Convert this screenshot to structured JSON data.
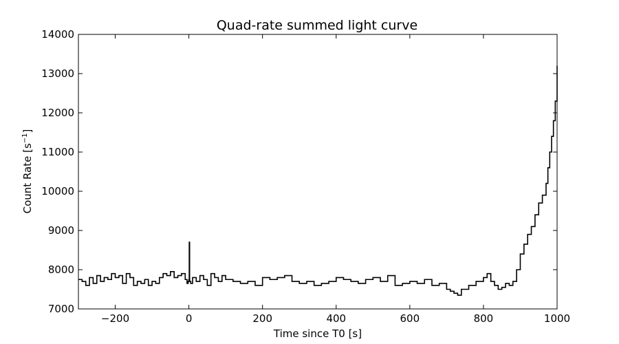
{
  "chart_data": {
    "type": "line",
    "title": "Quad-rate summed light curve",
    "xlabel": "Time since T0 [s]",
    "ylabel_main": "Count Rate [s",
    "ylabel_sup": "−1",
    "ylabel_end": "]",
    "xlim": [
      -300,
      1000
    ],
    "ylim": [
      7000,
      14000
    ],
    "xticks": [
      {
        "value": -200,
        "label": "−200"
      },
      {
        "value": 0,
        "label": "0"
      },
      {
        "value": 200,
        "label": "200"
      },
      {
        "value": 400,
        "label": "400"
      },
      {
        "value": 600,
        "label": "600"
      },
      {
        "value": 800,
        "label": "800"
      },
      {
        "value": 1000,
        "label": "1000"
      }
    ],
    "yticks": [
      {
        "value": 7000,
        "label": "7000"
      },
      {
        "value": 8000,
        "label": "8000"
      },
      {
        "value": 9000,
        "label": "9000"
      },
      {
        "value": 10000,
        "label": "10000"
      },
      {
        "value": 11000,
        "label": "11000"
      },
      {
        "value": 12000,
        "label": "12000"
      },
      {
        "value": 13000,
        "label": "13000"
      },
      {
        "value": 14000,
        "label": "14000"
      }
    ],
    "grid": false,
    "line_color": "#000000",
    "series": [
      {
        "x": [
          -300,
          -290,
          -280,
          -270,
          -260,
          -250,
          -240,
          -230,
          -220,
          -210,
          -200,
          -190,
          -180,
          -170,
          -160,
          -150,
          -140,
          -130,
          -120,
          -110,
          -100,
          -90,
          -80,
          -70,
          -60,
          -50,
          -40,
          -30,
          -20,
          -10,
          -5,
          -2,
          0,
          1,
          2,
          5,
          10,
          20,
          30,
          40,
          50,
          60,
          70,
          80,
          90,
          100,
          120,
          140,
          160,
          180,
          200,
          220,
          240,
          260,
          280,
          300,
          320,
          340,
          360,
          380,
          400,
          420,
          440,
          460,
          480,
          500,
          520,
          540,
          560,
          580,
          600,
          620,
          640,
          660,
          680,
          700,
          710,
          720,
          730,
          740,
          760,
          780,
          800,
          810,
          820,
          830,
          840,
          850,
          860,
          870,
          880,
          890,
          900,
          910,
          920,
          930,
          940,
          950,
          960,
          970,
          975,
          980,
          985,
          990,
          995,
          1000
        ],
        "y": [
          7750,
          7700,
          7600,
          7800,
          7650,
          7850,
          7700,
          7800,
          7750,
          7900,
          7800,
          7850,
          7650,
          7900,
          7800,
          7600,
          7700,
          7650,
          7750,
          7600,
          7700,
          7650,
          7800,
          7900,
          7850,
          7950,
          7800,
          7850,
          7900,
          7750,
          7650,
          7700,
          7750,
          8700,
          7700,
          7650,
          7800,
          7700,
          7850,
          7750,
          7600,
          7900,
          7800,
          7700,
          7850,
          7750,
          7700,
          7650,
          7700,
          7600,
          7800,
          7750,
          7800,
          7850,
          7700,
          7650,
          7700,
          7600,
          7650,
          7700,
          7800,
          7750,
          7700,
          7650,
          7750,
          7800,
          7700,
          7850,
          7600,
          7650,
          7700,
          7650,
          7750,
          7600,
          7650,
          7500,
          7450,
          7400,
          7350,
          7500,
          7600,
          7700,
          7800,
          7900,
          7700,
          7600,
          7500,
          7550,
          7650,
          7600,
          7700,
          8000,
          8400,
          8650,
          8900,
          9100,
          9400,
          9700,
          9900,
          10200,
          10600,
          11000,
          11400,
          11800,
          12300,
          13200
        ]
      }
    ]
  }
}
